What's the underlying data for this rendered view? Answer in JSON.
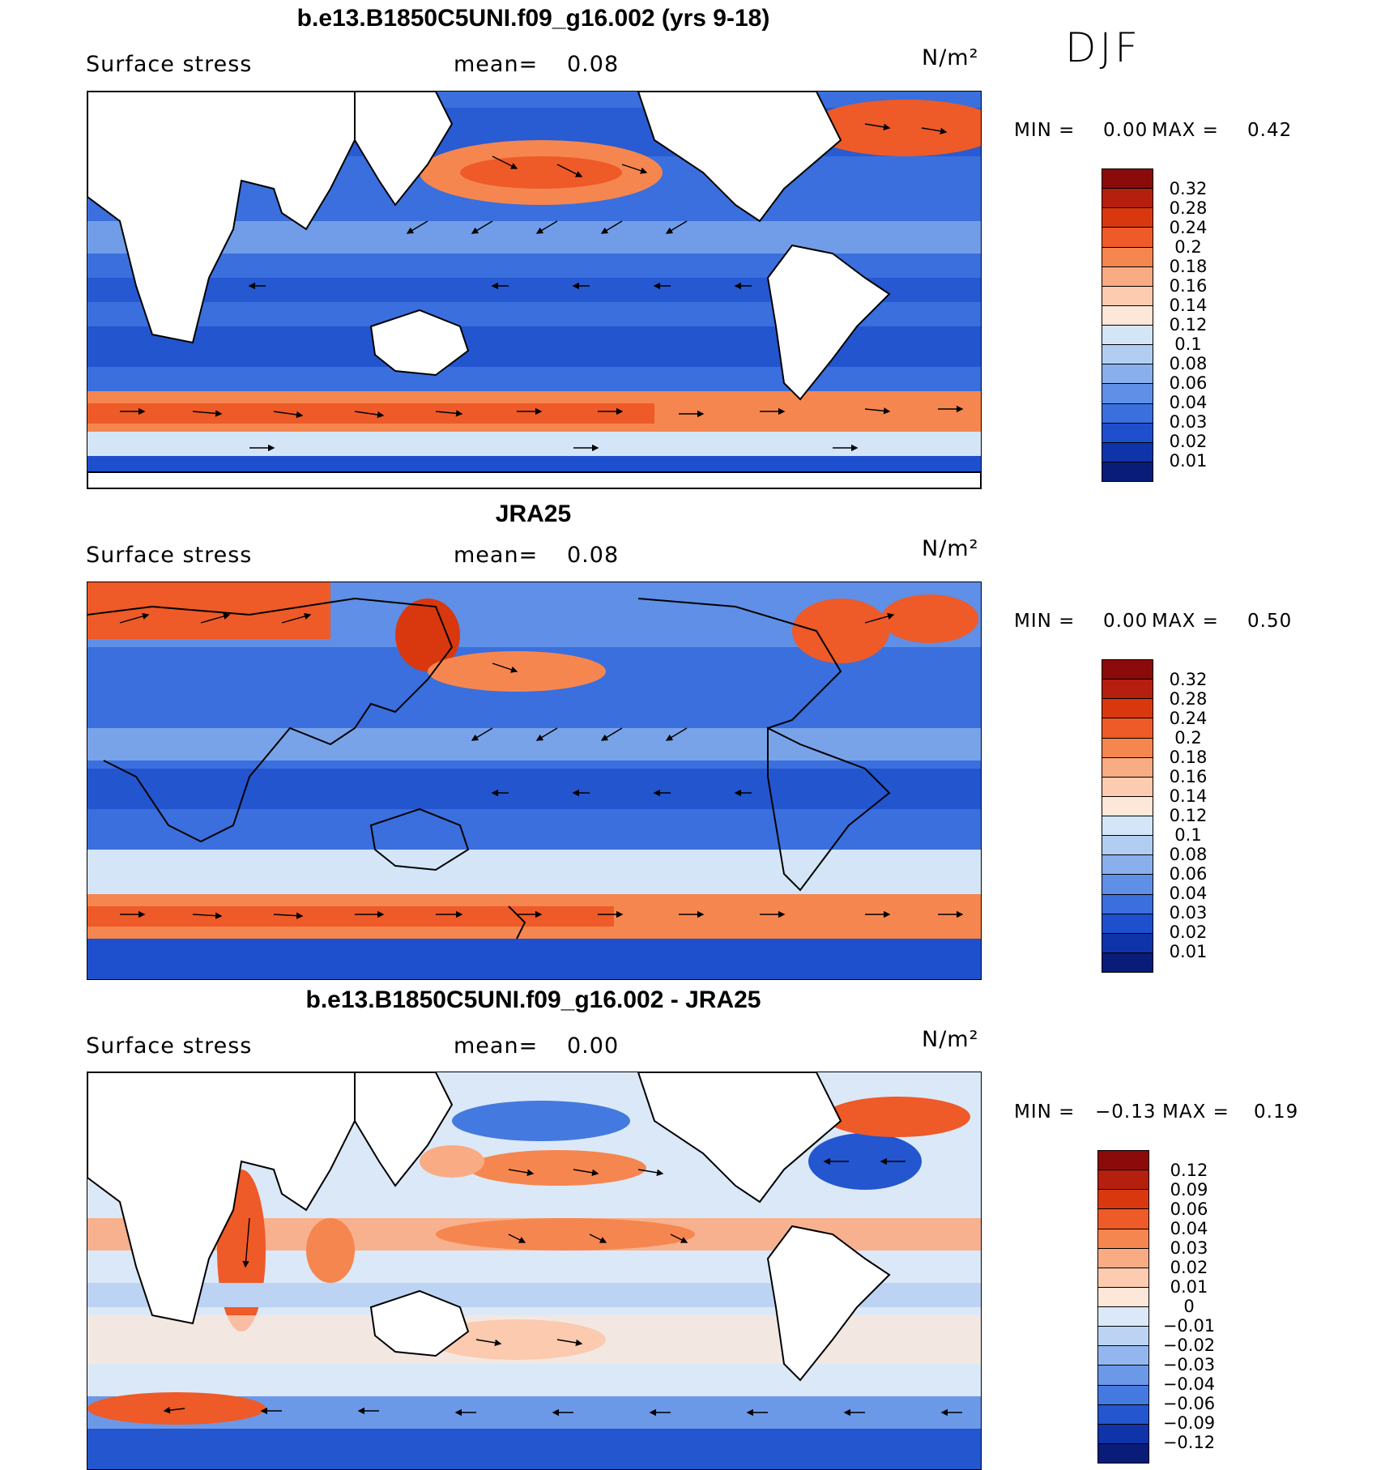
{
  "season": "DJF",
  "panels": [
    {
      "title": "b.e13.B1850C5UNI.f09_g16.002 (yrs 9-18)",
      "left_label": "Surface stress",
      "mean_label": "mean=",
      "mean_value": "0.08",
      "units": "N/m²",
      "min_label": "MIN =",
      "min_value": "0.00",
      "max_label": "MAX =",
      "max_value": "0.42",
      "colorbar_labels": [
        "0.32",
        "0.28",
        "0.24",
        "0.2",
        "0.18",
        "0.16",
        "0.14",
        "0.12",
        "0.1",
        "0.08",
        "0.06",
        "0.04",
        "0.03",
        "0.02",
        "0.01"
      ],
      "colorbar_colors": [
        "#8b0a0a",
        "#b51f0e",
        "#d9380f",
        "#ee5a28",
        "#f6864f",
        "#f9ab83",
        "#fccbb0",
        "#fde7d9",
        "#d3e5f7",
        "#b1cdf2",
        "#89b0ec",
        "#5f8fe6",
        "#3a6fdd",
        "#1e4fcc",
        "#0f33a8",
        "#091c78"
      ]
    },
    {
      "title": "JRA25",
      "left_label": "Surface stress",
      "mean_label": "mean=",
      "mean_value": "0.08",
      "units": "N/m²",
      "min_label": "MIN =",
      "min_value": "0.00",
      "max_label": "MAX =",
      "max_value": "0.50",
      "colorbar_labels": [
        "0.32",
        "0.28",
        "0.24",
        "0.2",
        "0.18",
        "0.16",
        "0.14",
        "0.12",
        "0.1",
        "0.08",
        "0.06",
        "0.04",
        "0.03",
        "0.02",
        "0.01"
      ],
      "colorbar_colors": [
        "#8b0a0a",
        "#b51f0e",
        "#d9380f",
        "#ee5a28",
        "#f6864f",
        "#f9ab83",
        "#fccbb0",
        "#fde7d9",
        "#d3e5f7",
        "#b1cdf2",
        "#89b0ec",
        "#5f8fe6",
        "#3a6fdd",
        "#1e4fcc",
        "#0f33a8",
        "#091c78"
      ]
    },
    {
      "title": "b.e13.B1850C5UNI.f09_g16.002 - JRA25",
      "left_label": "Surface stress",
      "mean_label": "mean=",
      "mean_value": "0.00",
      "units": "N/m²",
      "min_label": "MIN =",
      "min_value": "−0.13",
      "max_label": "MAX =",
      "max_value": "0.19",
      "colorbar_labels": [
        "0.12",
        "0.09",
        "0.06",
        "0.04",
        "0.03",
        "0.02",
        "0.01",
        "0",
        "−0.01",
        "−0.02",
        "−0.03",
        "−0.04",
        "−0.06",
        "−0.09",
        "−0.12"
      ],
      "colorbar_colors": [
        "#8b0a0a",
        "#b51f0e",
        "#d9380f",
        "#ee5a28",
        "#f6864f",
        "#f9ab83",
        "#fccbb0",
        "#fde7d9",
        "#dbe8f7",
        "#bcd3f3",
        "#93b6ee",
        "#6c98e8",
        "#4479e0",
        "#2356cf",
        "#0f33a8",
        "#091c78"
      ]
    }
  ]
}
